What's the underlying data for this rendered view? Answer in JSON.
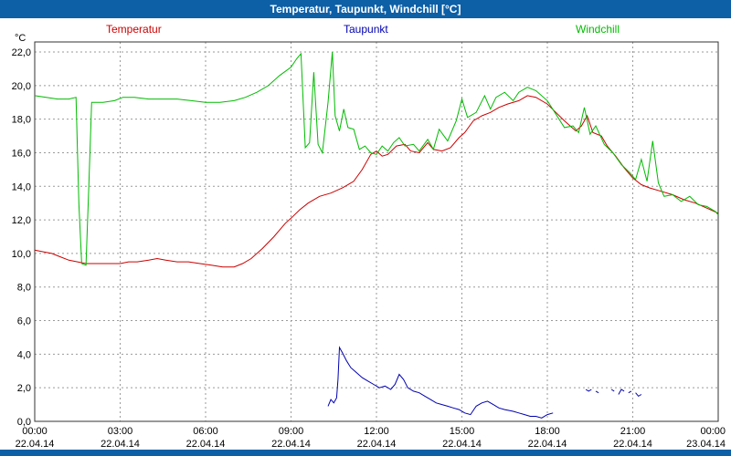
{
  "window": {
    "title": "Temperatur, Taupunkt, Windchill [°C]"
  },
  "colors": {
    "titlebar": "#0d5fa6",
    "temperatur": "#cc0000",
    "taupunkt": "#0000b0",
    "windchill": "#00bb00"
  },
  "chart_data": {
    "type": "line",
    "title": "Temperatur, Taupunkt, Windchill [°C]",
    "xlabel": "",
    "ylabel": "°C",
    "xlim": [
      0,
      24
    ],
    "ylim": [
      0,
      22.6
    ],
    "grid": true,
    "legend_position": "top",
    "yticks": [
      {
        "v": 22,
        "label": "22,0"
      },
      {
        "v": 20,
        "label": "20,0"
      },
      {
        "v": 18,
        "label": "18,0"
      },
      {
        "v": 16,
        "label": "16,0"
      },
      {
        "v": 14,
        "label": "14,0"
      },
      {
        "v": 12,
        "label": "12,0"
      },
      {
        "v": 10,
        "label": "10,0"
      },
      {
        "v": 8,
        "label": "8,0"
      },
      {
        "v": 6,
        "label": "6,0"
      },
      {
        "v": 4,
        "label": "4,0"
      },
      {
        "v": 2,
        "label": "2,0"
      },
      {
        "v": 0,
        "label": "0,0"
      }
    ],
    "xticks": [
      {
        "v": 0,
        "time": "00:00",
        "date": "22.04.14"
      },
      {
        "v": 3,
        "time": "03:00",
        "date": "22.04.14"
      },
      {
        "v": 6,
        "time": "06:00",
        "date": "22.04.14"
      },
      {
        "v": 9,
        "time": "09:00",
        "date": "22.04.14"
      },
      {
        "v": 12,
        "time": "12:00",
        "date": "22.04.14"
      },
      {
        "v": 15,
        "time": "15:00",
        "date": "22.04.14"
      },
      {
        "v": 18,
        "time": "18:00",
        "date": "22.04.14"
      },
      {
        "v": 21,
        "time": "21:00",
        "date": "22.04.14"
      },
      {
        "v": 24,
        "time": "00:00",
        "date": "23.04.14"
      }
    ],
    "series": [
      {
        "name": "Temperatur",
        "color": "#cc0000",
        "segments": [
          [
            [
              0,
              10.2
            ],
            [
              0.3,
              10.1
            ],
            [
              0.6,
              10.0
            ],
            [
              0.9,
              9.8
            ],
            [
              1.2,
              9.6
            ],
            [
              1.5,
              9.5
            ],
            [
              1.8,
              9.4
            ],
            [
              2.1,
              9.4
            ],
            [
              2.5,
              9.4
            ],
            [
              3.0,
              9.4
            ],
            [
              3.3,
              9.5
            ],
            [
              3.6,
              9.5
            ],
            [
              4.0,
              9.6
            ],
            [
              4.3,
              9.7
            ],
            [
              4.6,
              9.6
            ],
            [
              5.0,
              9.5
            ],
            [
              5.4,
              9.5
            ],
            [
              5.8,
              9.4
            ],
            [
              6.2,
              9.3
            ],
            [
              6.6,
              9.2
            ],
            [
              7.0,
              9.2
            ],
            [
              7.3,
              9.4
            ],
            [
              7.6,
              9.7
            ],
            [
              8.0,
              10.3
            ],
            [
              8.4,
              11.0
            ],
            [
              8.8,
              11.8
            ],
            [
              9.0,
              12.1
            ],
            [
              9.3,
              12.6
            ],
            [
              9.6,
              13.0
            ],
            [
              10.0,
              13.4
            ],
            [
              10.4,
              13.6
            ],
            [
              10.8,
              13.9
            ],
            [
              11.2,
              14.3
            ],
            [
              11.5,
              15.0
            ],
            [
              11.8,
              15.9
            ],
            [
              12.0,
              16.1
            ],
            [
              12.2,
              15.8
            ],
            [
              12.4,
              15.9
            ],
            [
              12.7,
              16.4
            ],
            [
              13.0,
              16.5
            ],
            [
              13.2,
              16.1
            ],
            [
              13.5,
              16.0
            ],
            [
              13.8,
              16.6
            ],
            [
              14.0,
              16.2
            ],
            [
              14.3,
              16.1
            ],
            [
              14.6,
              16.3
            ],
            [
              14.9,
              16.9
            ],
            [
              15.1,
              17.2
            ],
            [
              15.4,
              17.9
            ],
            [
              15.7,
              18.2
            ],
            [
              16.0,
              18.4
            ],
            [
              16.3,
              18.7
            ],
            [
              16.6,
              18.9
            ],
            [
              17.0,
              19.1
            ],
            [
              17.3,
              19.4
            ],
            [
              17.6,
              19.3
            ],
            [
              18.0,
              18.9
            ],
            [
              18.3,
              18.4
            ],
            [
              18.6,
              17.9
            ],
            [
              19.0,
              17.3
            ],
            [
              19.2,
              17.6
            ],
            [
              19.4,
              18.2
            ],
            [
              19.6,
              17.2
            ],
            [
              19.9,
              17.0
            ],
            [
              20.1,
              16.4
            ],
            [
              20.4,
              15.8
            ],
            [
              20.7,
              15.1
            ],
            [
              21.0,
              14.5
            ],
            [
              21.3,
              14.1
            ],
            [
              21.6,
              13.9
            ],
            [
              22.0,
              13.7
            ],
            [
              22.4,
              13.5
            ],
            [
              22.8,
              13.2
            ],
            [
              23.2,
              13.0
            ],
            [
              23.6,
              12.7
            ],
            [
              24.0,
              12.4
            ]
          ]
        ]
      },
      {
        "name": "Taupunkt",
        "color": "#0000b0",
        "segments": [
          [
            [
              10.3,
              0.9
            ],
            [
              10.4,
              1.3
            ],
            [
              10.5,
              1.1
            ],
            [
              10.6,
              1.4
            ],
            [
              10.65,
              2.5
            ],
            [
              10.7,
              4.4
            ],
            [
              10.8,
              4.1
            ],
            [
              10.95,
              3.6
            ],
            [
              11.1,
              3.2
            ],
            [
              11.3,
              2.9
            ],
            [
              11.5,
              2.6
            ],
            [
              11.7,
              2.4
            ],
            [
              11.9,
              2.2
            ],
            [
              12.1,
              2.0
            ],
            [
              12.3,
              2.1
            ],
            [
              12.5,
              1.9
            ],
            [
              12.65,
              2.2
            ],
            [
              12.8,
              2.8
            ],
            [
              12.95,
              2.5
            ],
            [
              13.1,
              2.0
            ],
            [
              13.3,
              1.8
            ],
            [
              13.5,
              1.7
            ],
            [
              13.7,
              1.5
            ],
            [
              13.9,
              1.3
            ],
            [
              14.1,
              1.1
            ],
            [
              14.3,
              1.0
            ],
            [
              14.5,
              0.9
            ],
            [
              14.7,
              0.8
            ],
            [
              14.9,
              0.7
            ],
            [
              15.1,
              0.5
            ],
            [
              15.3,
              0.4
            ],
            [
              15.5,
              0.9
            ],
            [
              15.7,
              1.1
            ],
            [
              15.9,
              1.2
            ],
            [
              16.1,
              1.0
            ],
            [
              16.3,
              0.8
            ],
            [
              16.5,
              0.7
            ],
            [
              16.8,
              0.6
            ],
            [
              17.0,
              0.5
            ],
            [
              17.2,
              0.4
            ],
            [
              17.4,
              0.3
            ],
            [
              17.6,
              0.3
            ],
            [
              17.8,
              0.2
            ],
            [
              18.0,
              0.4
            ],
            [
              18.2,
              0.5
            ]
          ],
          [
            [
              19.35,
              1.9
            ],
            [
              19.45,
              1.8
            ],
            [
              19.55,
              1.9
            ]
          ],
          [
            [
              19.7,
              1.8
            ],
            [
              19.8,
              1.7
            ]
          ],
          [
            [
              20.25,
              1.9
            ],
            [
              20.35,
              1.8
            ]
          ],
          [
            [
              20.5,
              1.6
            ],
            [
              20.6,
              1.9
            ],
            [
              20.7,
              1.8
            ]
          ],
          [
            [
              20.85,
              1.7
            ],
            [
              20.95,
              1.8
            ]
          ],
          [
            [
              21.1,
              1.7
            ],
            [
              21.2,
              1.5
            ],
            [
              21.3,
              1.6
            ]
          ]
        ]
      },
      {
        "name": "Windchill",
        "color": "#00bb00",
        "segments": [
          [
            [
              0,
              19.4
            ],
            [
              0.4,
              19.3
            ],
            [
              0.8,
              19.2
            ],
            [
              1.2,
              19.2
            ],
            [
              1.45,
              19.3
            ],
            [
              1.55,
              13.0
            ],
            [
              1.65,
              9.4
            ],
            [
              1.8,
              9.3
            ],
            [
              1.9,
              14.0
            ],
            [
              2.0,
              19.0
            ],
            [
              2.4,
              19.0
            ],
            [
              2.8,
              19.1
            ],
            [
              3.1,
              19.3
            ],
            [
              3.5,
              19.3
            ],
            [
              4.0,
              19.2
            ],
            [
              4.5,
              19.2
            ],
            [
              5.0,
              19.2
            ],
            [
              5.5,
              19.1
            ],
            [
              6.0,
              19.0
            ],
            [
              6.5,
              19.0
            ],
            [
              7.0,
              19.1
            ],
            [
              7.4,
              19.3
            ],
            [
              7.8,
              19.6
            ],
            [
              8.2,
              20.0
            ],
            [
              8.6,
              20.6
            ],
            [
              9.0,
              21.1
            ],
            [
              9.2,
              21.6
            ],
            [
              9.35,
              21.9
            ],
            [
              9.5,
              16.3
            ],
            [
              9.65,
              16.6
            ],
            [
              9.8,
              20.8
            ],
            [
              9.95,
              16.5
            ],
            [
              10.1,
              16.0
            ],
            [
              10.3,
              19.0
            ],
            [
              10.45,
              22.0
            ],
            [
              10.55,
              18.2
            ],
            [
              10.7,
              17.3
            ],
            [
              10.85,
              18.6
            ],
            [
              11.0,
              17.5
            ],
            [
              11.2,
              17.4
            ],
            [
              11.4,
              16.2
            ],
            [
              11.6,
              16.4
            ],
            [
              11.8,
              16.0
            ],
            [
              12.0,
              15.9
            ],
            [
              12.2,
              16.4
            ],
            [
              12.4,
              16.1
            ],
            [
              12.6,
              16.6
            ],
            [
              12.8,
              16.9
            ],
            [
              13.0,
              16.4
            ],
            [
              13.3,
              16.5
            ],
            [
              13.5,
              16.1
            ],
            [
              13.8,
              16.8
            ],
            [
              14.0,
              16.2
            ],
            [
              14.2,
              17.4
            ],
            [
              14.5,
              16.7
            ],
            [
              14.8,
              17.9
            ],
            [
              15.0,
              19.2
            ],
            [
              15.2,
              18.1
            ],
            [
              15.5,
              18.4
            ],
            [
              15.8,
              19.4
            ],
            [
              16.0,
              18.6
            ],
            [
              16.2,
              19.3
            ],
            [
              16.5,
              19.6
            ],
            [
              16.8,
              19.1
            ],
            [
              17.0,
              19.6
            ],
            [
              17.3,
              19.9
            ],
            [
              17.6,
              19.7
            ],
            [
              18.0,
              19.1
            ],
            [
              18.3,
              18.3
            ],
            [
              18.6,
              17.5
            ],
            [
              18.9,
              17.6
            ],
            [
              19.1,
              17.2
            ],
            [
              19.3,
              18.7
            ],
            [
              19.5,
              17.1
            ],
            [
              19.7,
              17.6
            ],
            [
              20.0,
              16.5
            ],
            [
              20.3,
              16.0
            ],
            [
              20.6,
              15.3
            ],
            [
              20.9,
              14.8
            ],
            [
              21.1,
              14.4
            ],
            [
              21.3,
              15.6
            ],
            [
              21.5,
              14.3
            ],
            [
              21.7,
              16.7
            ],
            [
              21.9,
              14.2
            ],
            [
              22.1,
              13.4
            ],
            [
              22.4,
              13.5
            ],
            [
              22.7,
              13.1
            ],
            [
              23.0,
              13.4
            ],
            [
              23.3,
              12.9
            ],
            [
              23.6,
              12.8
            ],
            [
              23.9,
              12.5
            ],
            [
              24.0,
              12.3
            ]
          ]
        ]
      }
    ]
  }
}
